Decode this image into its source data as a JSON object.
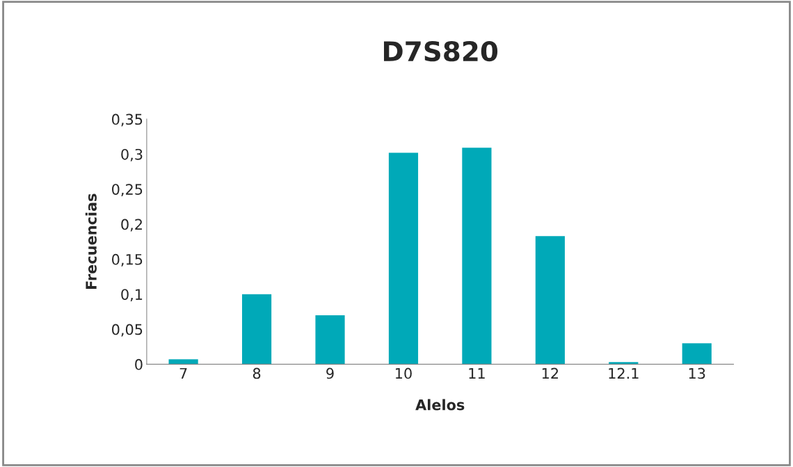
{
  "chart_data": {
    "type": "bar",
    "title": "D7S820",
    "xlabel": "Alelos",
    "ylabel": "Frecuencias",
    "categories": [
      "7",
      "8",
      "9",
      "10",
      "11",
      "12",
      "12.1",
      "13"
    ],
    "values": [
      0.007,
      0.1,
      0.07,
      0.302,
      0.309,
      0.183,
      0.003,
      0.03
    ],
    "color": "#00a9b8",
    "ylim": [
      0,
      0.35
    ],
    "yticks": [
      0,
      {
        "value": 0.05,
        "label": "0,05"
      },
      {
        "value": 0.1,
        "label": "0,1"
      },
      {
        "value": 0.15,
        "label": "0,15"
      },
      {
        "value": 0.2,
        "label": "0,2"
      },
      {
        "value": 0.25,
        "label": "0,25"
      },
      {
        "value": 0.3,
        "label": "0,3"
      },
      {
        "value": 0.35,
        "label": "0,35"
      }
    ],
    "grid": false,
    "legend": false
  }
}
